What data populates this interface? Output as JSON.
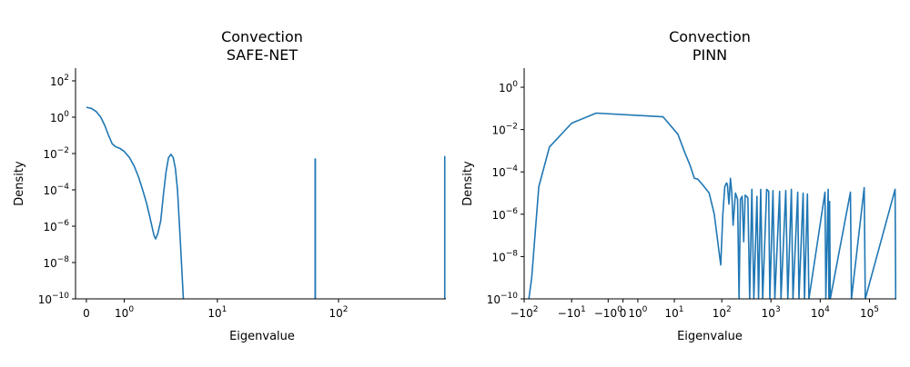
{
  "chart_data": [
    {
      "type": "line",
      "title_lines": [
        "Convection",
        "SAFE-NET"
      ],
      "xlabel": "Eigenvalue",
      "ylabel": "Density",
      "xscale": "symlog",
      "yscale": "log",
      "xlim": [
        -0.22,
        720
      ],
      "ylim": [
        1e-10,
        500
      ],
      "xticks": [
        {
          "value": 0,
          "label": "0"
        },
        {
          "value": 1,
          "label": "10^0"
        },
        {
          "value": 10,
          "label": "10^1"
        },
        {
          "value": 100,
          "label": "10^2"
        }
      ],
      "yticks": [
        {
          "value": 1e-10,
          "label": "10^-10"
        },
        {
          "value": 1e-08,
          "label": "10^-8"
        },
        {
          "value": 1e-06,
          "label": "10^-6"
        },
        {
          "value": 0.0001,
          "label": "10^-4"
        },
        {
          "value": 0.01,
          "label": "10^-2"
        },
        {
          "value": 1,
          "label": "10^0"
        },
        {
          "value": 100,
          "label": "10^2"
        }
      ],
      "series": [
        {
          "color": "#1f77b4",
          "points": [
            [
              0,
              3.5
            ],
            [
              0.1,
              3.0
            ],
            [
              0.2,
              2.0
            ],
            [
              0.3,
              1.0
            ],
            [
              0.4,
              0.35
            ],
            [
              0.5,
              0.1
            ],
            [
              0.6,
              0.035
            ],
            [
              0.7,
              0.024
            ],
            [
              0.85,
              0.019
            ],
            [
              1.0,
              0.013
            ],
            [
              1.2,
              0.006
            ],
            [
              1.4,
              0.002
            ],
            [
              1.6,
              0.0005
            ],
            [
              1.8,
              0.0001
            ],
            [
              2.0,
              2e-05
            ],
            [
              2.2,
              3e-06
            ],
            [
              2.45,
              3e-07
            ],
            [
              2.55,
              2e-07
            ],
            [
              2.7,
              4e-07
            ],
            [
              2.9,
              2e-06
            ],
            [
              3.1,
              6e-05
            ],
            [
              3.3,
              0.001
            ],
            [
              3.5,
              0.006
            ],
            [
              3.7,
              0.009
            ],
            [
              3.9,
              0.006
            ],
            [
              4.1,
              0.0015
            ],
            [
              4.3,
              0.0001
            ],
            [
              4.6,
              1e-07
            ],
            [
              4.9,
              1e-10
            ]
          ]
        },
        {
          "color": "#1f77b4",
          "points": [
            [
              64.8,
              1e-10
            ],
            [
              64.8,
              0.005
            ],
            [
              65.1,
              0.005
            ],
            [
              65.1,
              1e-10
            ]
          ]
        },
        {
          "color": "#1f77b4",
          "points": [
            [
              705,
              1e-10
            ],
            [
              705,
              0.007
            ],
            [
              706,
              0.007
            ]
          ]
        }
      ]
    },
    {
      "type": "line",
      "title_lines": [
        "Convection",
        "PINN"
      ],
      "xlabel": "Eigenvalue",
      "ylabel": "Density",
      "xscale": "symlog",
      "yscale": "log",
      "xlim": [
        -100,
        350000
      ],
      "ylim": [
        1e-10,
        8
      ],
      "xticks": [
        {
          "value": -100,
          "label": "−10^2"
        },
        {
          "value": -10,
          "label": "−10^1"
        },
        {
          "value": -1,
          "label": "−10^0"
        },
        {
          "value": 0,
          "label": "0"
        },
        {
          "value": 1,
          "label": "10^0"
        },
        {
          "value": 10,
          "label": "10^1"
        },
        {
          "value": 100,
          "label": "10^2"
        },
        {
          "value": 1000,
          "label": "10^3"
        },
        {
          "value": 10000,
          "label": "10^4"
        },
        {
          "value": 100000,
          "label": "10^5"
        }
      ],
      "yticks": [
        {
          "value": 1e-10,
          "label": "10^-10"
        },
        {
          "value": 1e-08,
          "label": "10^-8"
        },
        {
          "value": 1e-06,
          "label": "10^-6"
        },
        {
          "value": 0.0001,
          "label": "10^-4"
        },
        {
          "value": 0.01,
          "label": "10^-2"
        },
        {
          "value": 1,
          "label": "10^0"
        }
      ],
      "series": [
        {
          "color": "#1f77b4",
          "points": [
            [
              -80,
              1e-10
            ],
            [
              -70,
              1e-09
            ],
            [
              -50,
              2e-05
            ],
            [
              -30,
              0.0015
            ],
            [
              -10,
              0.02
            ],
            [
              -2.5,
              0.06
            ],
            [
              5.5,
              0.04
            ],
            [
              12,
              0.006
            ],
            [
              17,
              0.0008
            ],
            [
              22,
              0.0002
            ],
            [
              27,
              5e-05
            ],
            [
              32,
              4.5e-05
            ],
            [
              40,
              2.5e-05
            ],
            [
              55,
              1e-05
            ],
            [
              70,
              1e-06
            ],
            [
              85,
              3e-08
            ],
            [
              95,
              4e-09
            ],
            [
              105,
              1e-06
            ],
            [
              115,
              2e-05
            ],
            [
              125,
              3e-05
            ],
            [
              130,
              2.5e-05
            ],
            [
              140,
              3e-06
            ],
            [
              150,
              5e-05
            ],
            [
              160,
              1e-05
            ],
            [
              170,
              3e-07
            ],
            [
              190,
              1e-05
            ],
            [
              210,
              5e-06
            ],
            [
              225,
              1e-10
            ],
            [
              240,
              5e-06
            ],
            [
              260,
              7e-06
            ],
            [
              280,
              5e-08
            ],
            [
              300,
              8e-06
            ],
            [
              340,
              6e-06
            ],
            [
              370,
              1e-10
            ],
            [
              410,
              1.5e-05
            ],
            [
              450,
              1e-10
            ],
            [
              520,
              7e-06
            ],
            [
              560,
              1e-10
            ],
            [
              620,
              1.5e-05
            ],
            [
              680,
              1e-10
            ],
            [
              820,
              1.5e-05
            ],
            [
              900,
              1.2e-05
            ],
            [
              950,
              1e-10
            ],
            [
              1100,
              1.3e-05
            ],
            [
              1200,
              1e-10
            ],
            [
              1500,
              1.2e-05
            ],
            [
              1600,
              1e-10
            ],
            [
              2000,
              1.3e-05
            ],
            [
              2200,
              1e-10
            ],
            [
              2600,
              1.5e-05
            ],
            [
              2800,
              1e-10
            ],
            [
              3500,
              1.1e-05
            ],
            [
              3700,
              1e-10
            ],
            [
              4500,
              1e-05
            ],
            [
              4800,
              1e-10
            ],
            [
              5500,
              9e-06
            ],
            [
              5900,
              1e-10
            ],
            [
              12500,
              1.1e-05
            ],
            [
              13000,
              1e-10
            ],
            [
              14500,
              1.5e-05
            ],
            [
              15000,
              1e-10
            ],
            [
              15500,
              4e-06
            ],
            [
              16000,
              1e-10
            ],
            [
              41000,
              1.1e-05
            ],
            [
              43000,
              1e-10
            ],
            [
              78000,
              1.8e-05
            ],
            [
              82000,
              1e-10
            ],
            [
              330000,
              1.5e-05
            ],
            [
              340000,
              1e-10
            ]
          ]
        }
      ]
    }
  ]
}
